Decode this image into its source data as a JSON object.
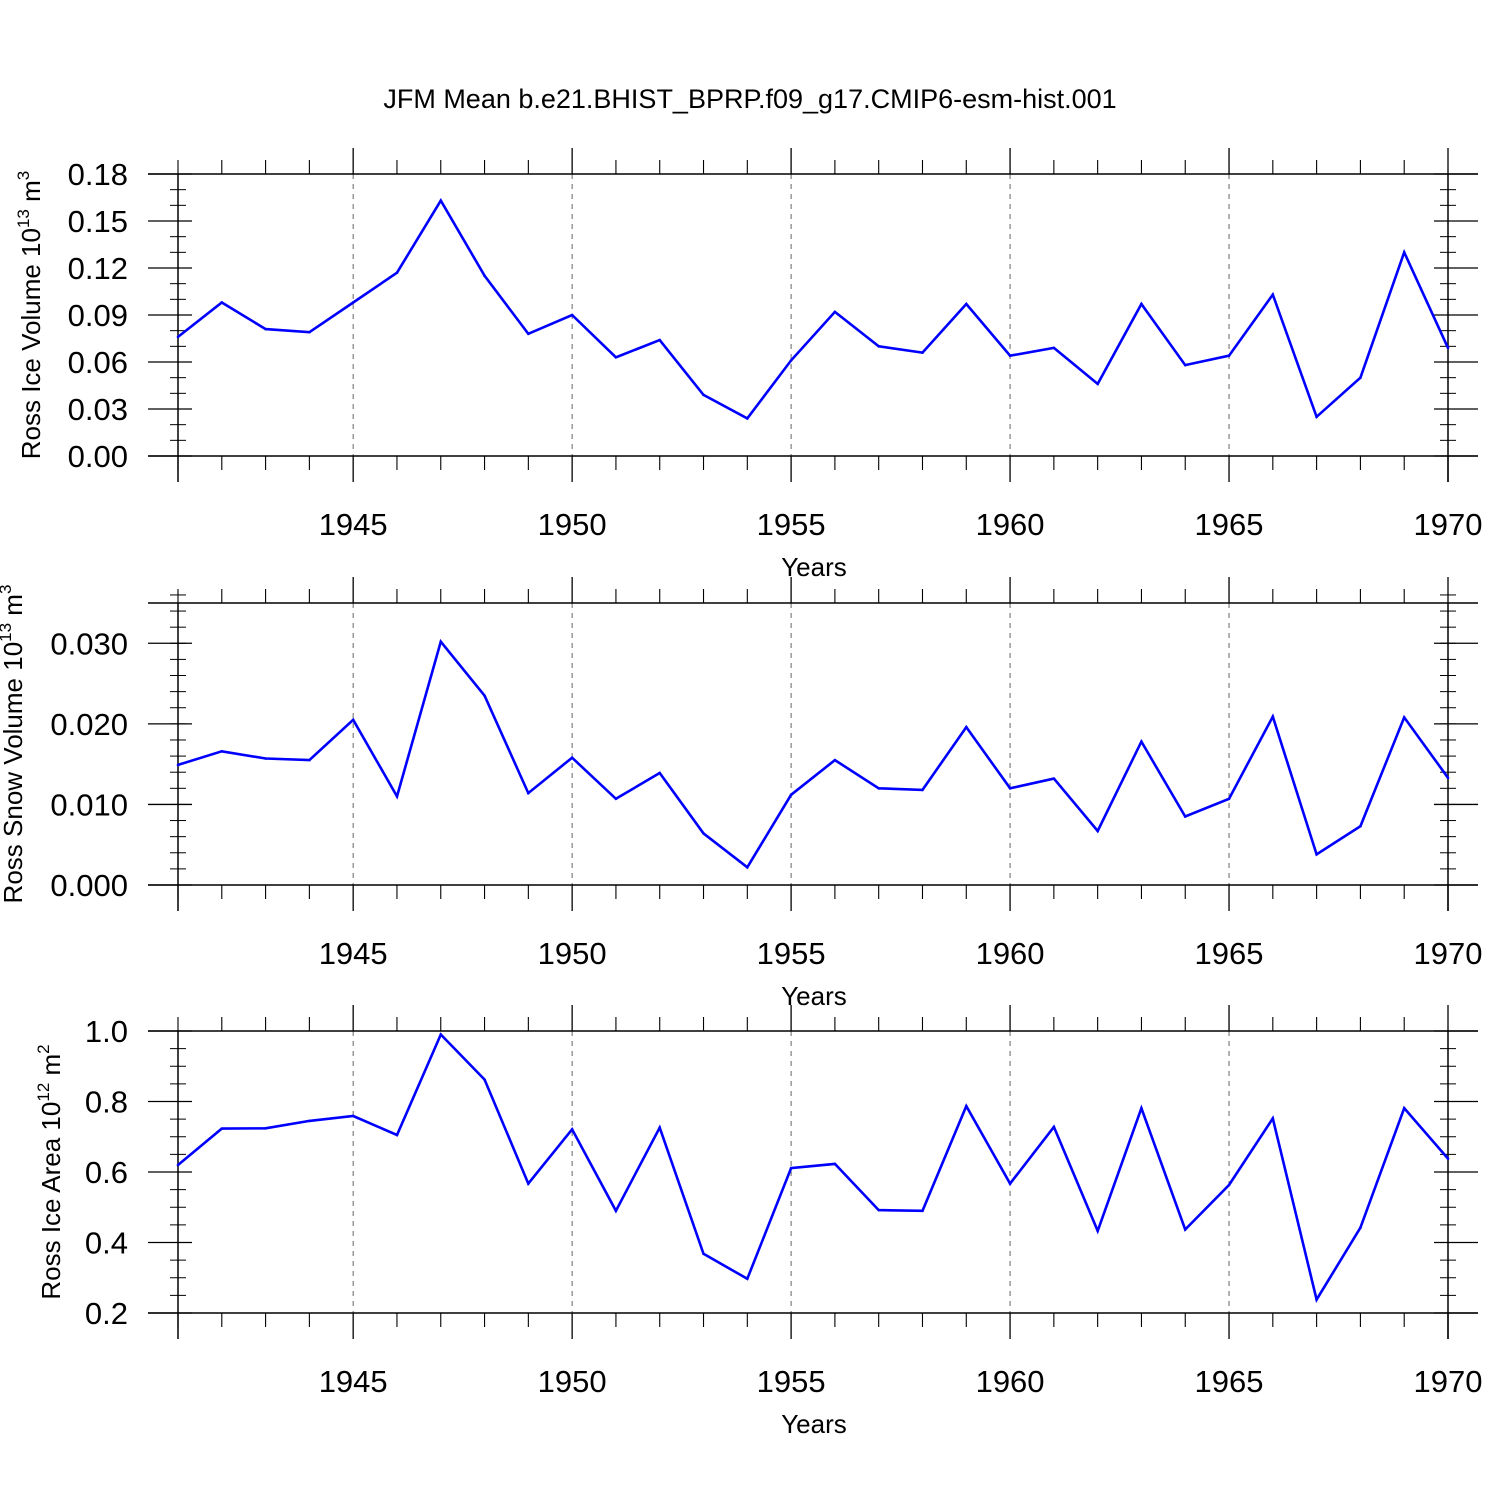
{
  "title": "JFM Mean b.e21.BHIST_BPRP.f09_g17.CMIP6-esm-hist.001",
  "colors": {
    "line": "#0000ff",
    "axis": "#000000",
    "grid": "#666666"
  },
  "chart_data": [
    {
      "type": "line",
      "name": "ice-volume",
      "ylabel_main": "Ross Ice Volume 10",
      "ylabel_exp": "13",
      "ylabel_unit": " m",
      "ylabel_unit_exp": "3",
      "xlabel": "Years",
      "xlim": [
        1941,
        1970
      ],
      "ylim": [
        0.0,
        0.18
      ],
      "yticks": [
        0.0,
        0.03,
        0.06,
        0.09,
        0.12,
        0.15,
        0.18
      ],
      "ytick_labels": [
        "0.00",
        "0.03",
        "0.06",
        "0.09",
        "0.12",
        "0.15",
        "0.18"
      ],
      "yminor_step": 0.01,
      "xticks": [
        1945,
        1950,
        1955,
        1960,
        1965,
        1970
      ],
      "xtick_labels": [
        "1945",
        "1950",
        "1955",
        "1960",
        "1965",
        "1970"
      ],
      "x": [
        1941,
        1942,
        1943,
        1944,
        1945,
        1946,
        1947,
        1948,
        1949,
        1950,
        1951,
        1952,
        1953,
        1954,
        1955,
        1956,
        1957,
        1958,
        1959,
        1960,
        1961,
        1962,
        1963,
        1964,
        1965,
        1966,
        1967,
        1968,
        1969,
        1970
      ],
      "values": [
        0.076,
        0.098,
        0.081,
        0.079,
        0.098,
        0.117,
        0.163,
        0.115,
        0.078,
        0.09,
        0.063,
        0.074,
        0.039,
        0.024,
        0.061,
        0.092,
        0.07,
        0.066,
        0.097,
        0.064,
        0.069,
        0.046,
        0.097,
        0.058,
        0.064,
        0.103,
        0.025,
        0.05,
        0.13,
        0.069
      ]
    },
    {
      "type": "line",
      "name": "snow-volume",
      "ylabel_main": "Ross Snow Volume 10",
      "ylabel_exp": "13",
      "ylabel_unit": " m",
      "ylabel_unit_exp": "3",
      "xlabel": "Years",
      "xlim": [
        1941,
        1970
      ],
      "ylim": [
        0.0,
        0.035
      ],
      "yticks": [
        0.0,
        0.01,
        0.02,
        0.03
      ],
      "ytick_labels": [
        "0.000",
        "0.010",
        "0.020",
        "0.030"
      ],
      "yminor_step": 0.002,
      "xticks": [
        1945,
        1950,
        1955,
        1960,
        1965,
        1970
      ],
      "xtick_labels": [
        "1945",
        "1950",
        "1955",
        "1960",
        "1965",
        "1970"
      ],
      "x": [
        1941,
        1942,
        1943,
        1944,
        1945,
        1946,
        1947,
        1948,
        1949,
        1950,
        1951,
        1952,
        1953,
        1954,
        1955,
        1956,
        1957,
        1958,
        1959,
        1960,
        1961,
        1962,
        1963,
        1964,
        1965,
        1966,
        1967,
        1968,
        1969,
        1970
      ],
      "values": [
        0.0149,
        0.0166,
        0.0157,
        0.0155,
        0.0205,
        0.011,
        0.0302,
        0.0235,
        0.0114,
        0.0158,
        0.0107,
        0.0139,
        0.0064,
        0.0022,
        0.0112,
        0.0155,
        0.012,
        0.0118,
        0.0196,
        0.012,
        0.0132,
        0.0067,
        0.0178,
        0.0085,
        0.0107,
        0.0209,
        0.0038,
        0.0073,
        0.0208,
        0.0133
      ]
    },
    {
      "type": "line",
      "name": "ice-area",
      "ylabel_main": "Ross Ice Area 10",
      "ylabel_exp": "12",
      "ylabel_unit": " m",
      "ylabel_unit_exp": "2",
      "xlabel": "Years",
      "xlim": [
        1941,
        1970
      ],
      "ylim": [
        0.2,
        1.0
      ],
      "yticks": [
        0.2,
        0.4,
        0.6,
        0.8,
        1.0
      ],
      "ytick_labels": [
        "0.2",
        "0.4",
        "0.6",
        "0.8",
        "1.0"
      ],
      "yminor_step": 0.05,
      "xticks": [
        1945,
        1950,
        1955,
        1960,
        1965,
        1970
      ],
      "xtick_labels": [
        "1945",
        "1950",
        "1955",
        "1960",
        "1965",
        "1970"
      ],
      "x": [
        1941,
        1942,
        1943,
        1944,
        1945,
        1946,
        1947,
        1948,
        1949,
        1950,
        1951,
        1952,
        1953,
        1954,
        1955,
        1956,
        1957,
        1958,
        1959,
        1960,
        1961,
        1962,
        1963,
        1964,
        1965,
        1966,
        1967,
        1968,
        1969,
        1970
      ],
      "values": [
        0.62,
        0.723,
        0.724,
        0.745,
        0.759,
        0.705,
        0.99,
        0.862,
        0.567,
        0.721,
        0.49,
        0.726,
        0.368,
        0.297,
        0.611,
        0.623,
        0.492,
        0.49,
        0.787,
        0.567,
        0.728,
        0.433,
        0.781,
        0.437,
        0.563,
        0.752,
        0.238,
        0.442,
        0.781,
        0.638
      ]
    }
  ]
}
